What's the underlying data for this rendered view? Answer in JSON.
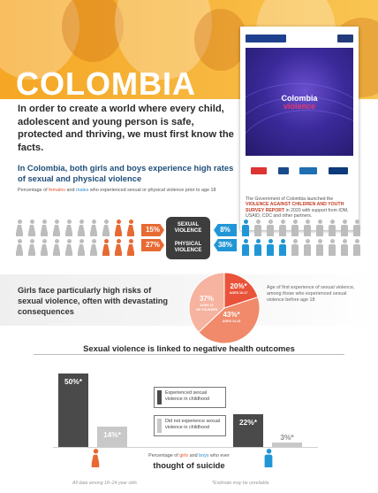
{
  "header": {
    "title": "COLOMBIA"
  },
  "report_cover": {
    "cover_title_1": "Colombia",
    "cover_title_2": "violence",
    "caption_pre": "The Government of Colombia launched the ",
    "caption_highlight": "VIOLENCE AGAINST CHILDREN AND YOUTH SURVEY REPORT",
    "caption_post": " in 2020 with support from IOM, USAID, CDC and other partners.",
    "partner_logos": [
      "Together for girls",
      "CDC",
      "IOM",
      "USAID"
    ]
  },
  "intro": {
    "lead": "In order to create a world where every child, adolescent and young person is safe, protected and thriving, we must first know the facts.",
    "subhead": "In Colombia, both girls and boys experience high rates of sexual and physical violence",
    "note_pre": "Percentage of ",
    "note_females": "females",
    "note_and": " and ",
    "note_males": "males",
    "note_post": " who experienced sexual or physical violence prior to age 18"
  },
  "violence_rates": {
    "sexual_label_1": "SEXUAL",
    "sexual_label_2": "VIOLENCE",
    "physical_label_1": "PHYSICAL",
    "physical_label_2": "VIOLENCE",
    "sexual_female": "15%",
    "sexual_male": "8%",
    "physical_female": "27%",
    "physical_male": "38%",
    "sexual_female_value": 15,
    "sexual_male_value": 8,
    "physical_female_value": 27,
    "physical_male_value": 38,
    "colors": {
      "female": "#e76a33",
      "male": "#2196d6",
      "neutral": "#3d3d3d"
    }
  },
  "girls_risk": {
    "text": "Girls face particularly high risks of sexual violence, often with devastating consequences",
    "pie_note": "Age of first experience of sexual violence, among those who experienced sexual violence before age 18"
  },
  "chart_data": [
    {
      "type": "pie",
      "title": "",
      "slices": [
        {
          "label_pct": "20%*",
          "label_text": "AGES 16-17",
          "value": 20,
          "color": "#e9533a"
        },
        {
          "label_pct": "43%*",
          "label_text": "AGES 14-15",
          "value": 43,
          "color": "#f08a6b"
        },
        {
          "label_pct": "37%",
          "label_text": "AGES 13 OR YOUNGER",
          "value": 37,
          "color": "#f6b3a0"
        }
      ]
    },
    {
      "type": "bar",
      "title": "Sexual violence is linked to negative health outcomes",
      "categories": [
        "girls",
        "boys"
      ],
      "series": [
        {
          "name": "Experienced sexual violence in childhood",
          "values": [
            50,
            22
          ],
          "labels": [
            "50%*",
            "22%*"
          ],
          "color": "#4a4a4a"
        },
        {
          "name": "Did not experience sexual violence in childhood",
          "values": [
            14,
            3
          ],
          "labels": [
            "14%*",
            "3%*"
          ],
          "color": "#c8c8c8"
        }
      ],
      "ylim": [
        0,
        60
      ]
    }
  ],
  "outcomes": {
    "legend_1": "Experienced sexual violence in childhood",
    "legend_2": "Did not experience sexual violence in childhood",
    "pct_pre": "Percentage of ",
    "pct_girls": "girls",
    "pct_and": " and ",
    "pct_boys": "boys",
    "pct_post": " who ever",
    "suicide": "thought of suicide",
    "footnote_left": "All data among 18–24 year olds",
    "footnote_right": "*Estimate may be unreliable"
  }
}
